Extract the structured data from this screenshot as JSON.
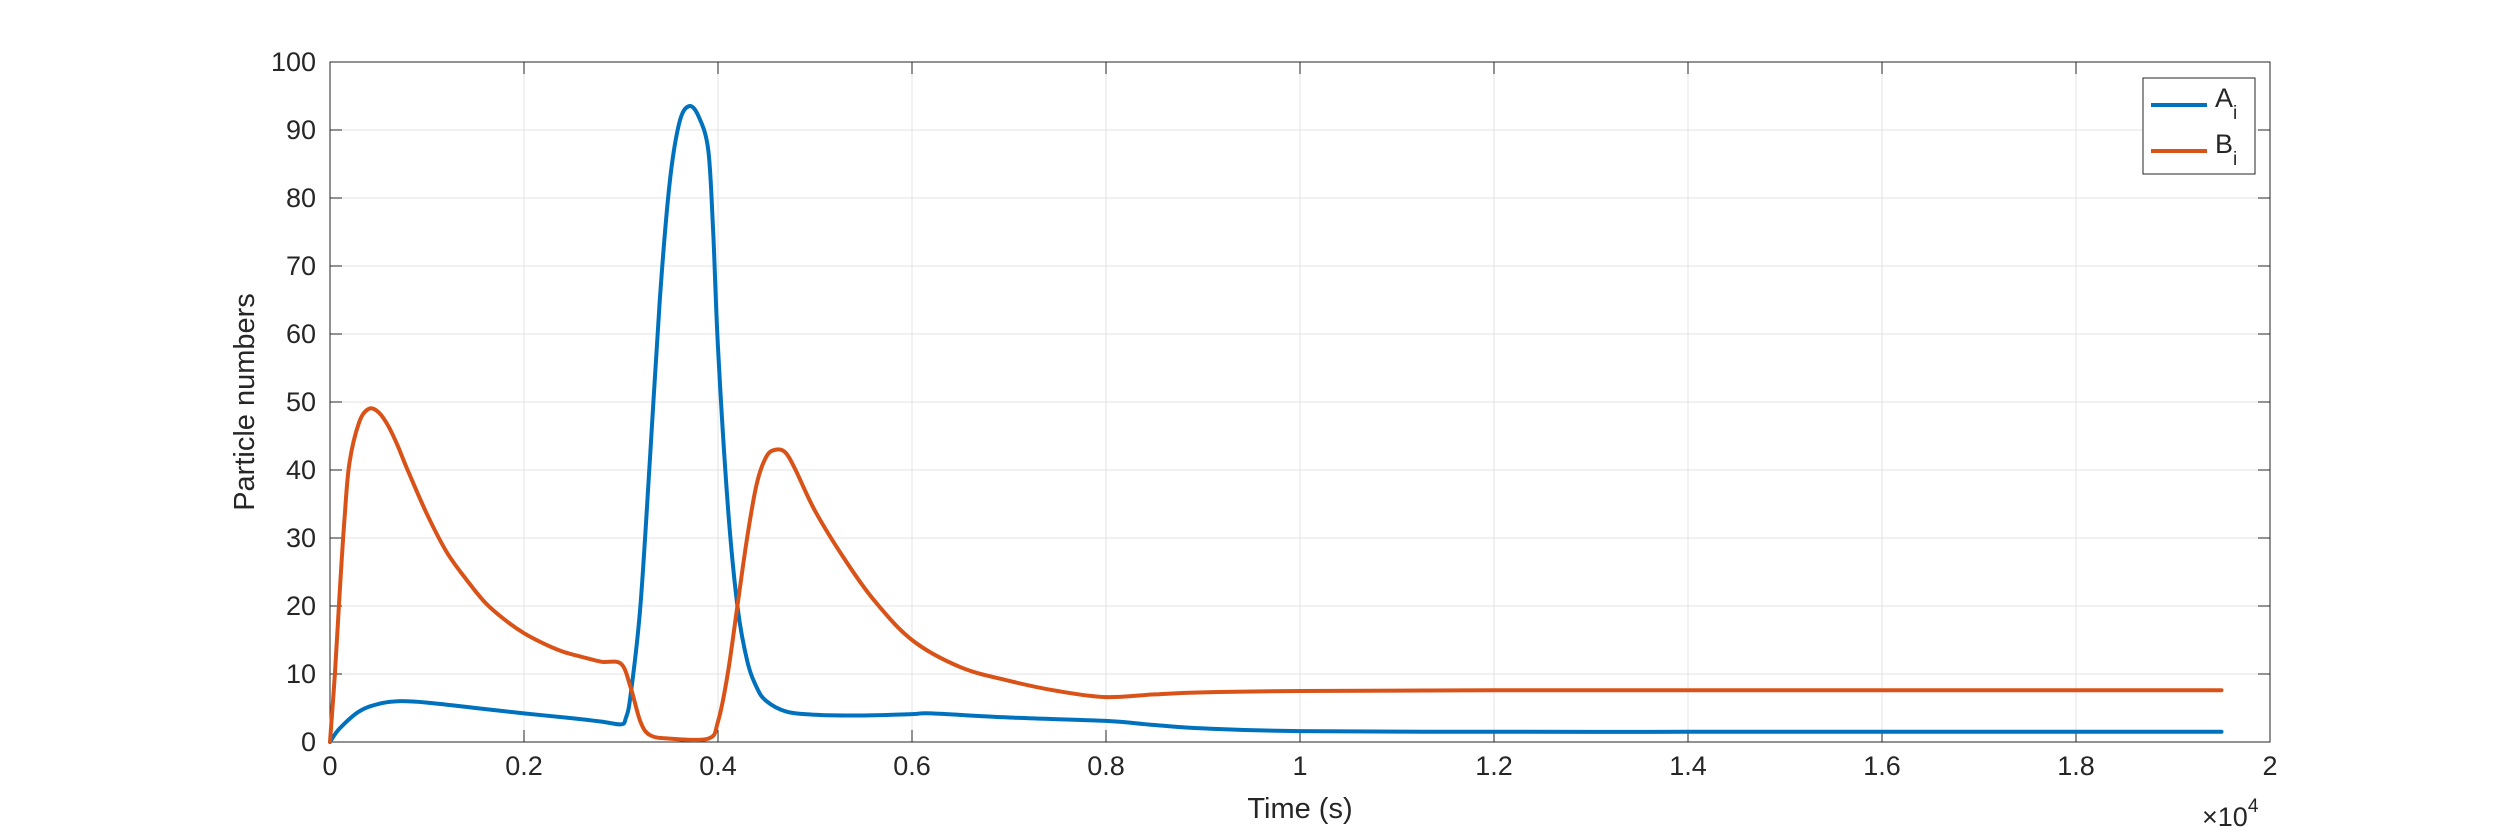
{
  "chart_data": {
    "type": "line",
    "xlabel": "Time (s)",
    "ylabel": "Particle numbers",
    "x_multiplier": "×10",
    "x_multiplier_exponent": "4",
    "x_ticks": [
      "0",
      "0.2",
      "0.4",
      "0.6",
      "0.8",
      "1",
      "1.2",
      "1.4",
      "1.6",
      "1.8",
      "2"
    ],
    "y_ticks": [
      "0",
      "10",
      "20",
      "30",
      "40",
      "50",
      "60",
      "70",
      "80",
      "90",
      "100"
    ],
    "xlim": [
      0,
      2
    ],
    "ylim": [
      0,
      100
    ],
    "grid": true,
    "legend_position": "top-right",
    "series": [
      {
        "name": "A",
        "name_sub": "i",
        "color": "#0072BD",
        "points": [
          [
            0,
            0
          ],
          [
            0.01,
            2
          ],
          [
            0.03,
            4.5
          ],
          [
            0.05,
            5.6
          ],
          [
            0.07,
            6
          ],
          [
            0.1,
            5.8
          ],
          [
            0.15,
            5
          ],
          [
            0.2,
            4.2
          ],
          [
            0.25,
            3.5
          ],
          [
            0.28,
            3
          ],
          [
            0.3,
            2.6
          ],
          [
            0.305,
            3.5
          ],
          [
            0.31,
            7
          ],
          [
            0.32,
            20
          ],
          [
            0.33,
            42
          ],
          [
            0.34,
            65
          ],
          [
            0.35,
            82
          ],
          [
            0.36,
            91
          ],
          [
            0.37,
            93.5
          ],
          [
            0.38,
            92
          ],
          [
            0.39,
            87
          ],
          [
            0.395,
            75
          ],
          [
            0.4,
            58
          ],
          [
            0.41,
            35
          ],
          [
            0.42,
            20
          ],
          [
            0.43,
            12
          ],
          [
            0.44,
            8
          ],
          [
            0.45,
            6
          ],
          [
            0.47,
            4.5
          ],
          [
            0.5,
            4
          ],
          [
            0.55,
            3.9
          ],
          [
            0.6,
            4.1
          ],
          [
            0.62,
            4.2
          ],
          [
            0.7,
            3.6
          ],
          [
            0.8,
            3.1
          ],
          [
            0.85,
            2.5
          ],
          [
            0.9,
            2
          ],
          [
            1.0,
            1.6
          ],
          [
            1.2,
            1.5
          ],
          [
            1.4,
            1.5
          ],
          [
            1.6,
            1.5
          ],
          [
            1.8,
            1.5
          ],
          [
            1.95,
            1.5
          ]
        ]
      },
      {
        "name": "B",
        "name_sub": "i",
        "color": "#D95319",
        "points": [
          [
            0,
            0
          ],
          [
            0.005,
            10
          ],
          [
            0.01,
            22
          ],
          [
            0.015,
            33
          ],
          [
            0.02,
            41
          ],
          [
            0.03,
            47
          ],
          [
            0.04,
            49
          ],
          [
            0.05,
            48.5
          ],
          [
            0.06,
            46.5
          ],
          [
            0.07,
            43.5
          ],
          [
            0.08,
            40
          ],
          [
            0.1,
            33.5
          ],
          [
            0.12,
            28
          ],
          [
            0.14,
            24
          ],
          [
            0.16,
            20.5
          ],
          [
            0.18,
            18
          ],
          [
            0.2,
            16
          ],
          [
            0.22,
            14.5
          ],
          [
            0.24,
            13.3
          ],
          [
            0.26,
            12.5
          ],
          [
            0.28,
            11.8
          ],
          [
            0.3,
            11.5
          ],
          [
            0.31,
            8
          ],
          [
            0.32,
            3
          ],
          [
            0.33,
            1
          ],
          [
            0.35,
            0.5
          ],
          [
            0.39,
            0.5
          ],
          [
            0.4,
            3
          ],
          [
            0.41,
            10
          ],
          [
            0.42,
            20
          ],
          [
            0.43,
            30
          ],
          [
            0.44,
            38
          ],
          [
            0.45,
            42
          ],
          [
            0.46,
            43
          ],
          [
            0.47,
            42.5
          ],
          [
            0.48,
            40
          ],
          [
            0.5,
            34
          ],
          [
            0.53,
            27
          ],
          [
            0.56,
            21
          ],
          [
            0.6,
            15
          ],
          [
            0.65,
            11
          ],
          [
            0.7,
            9
          ],
          [
            0.75,
            7.5
          ],
          [
            0.8,
            6.6
          ],
          [
            0.85,
            7
          ],
          [
            0.9,
            7.3
          ],
          [
            1.0,
            7.5
          ],
          [
            1.2,
            7.6
          ],
          [
            1.4,
            7.6
          ],
          [
            1.6,
            7.6
          ],
          [
            1.8,
            7.6
          ],
          [
            1.95,
            7.6
          ]
        ]
      }
    ]
  }
}
